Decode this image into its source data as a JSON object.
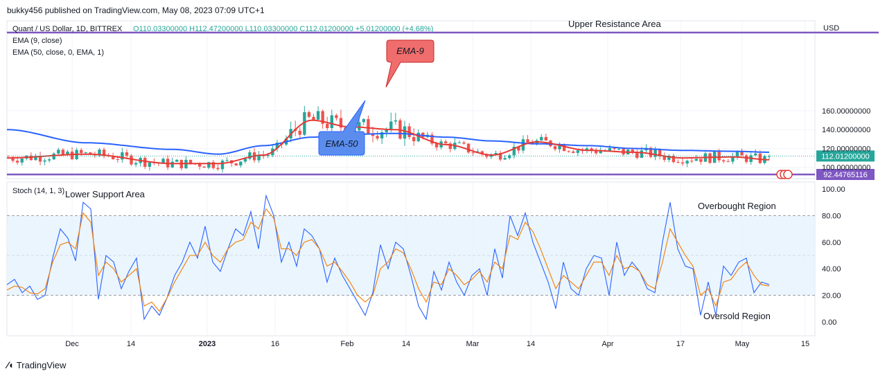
{
  "header": {
    "published": "bukky456 published on TradingView.com, May 08, 2023 07:09 UTC+1"
  },
  "legend": {
    "symbol": "Quant / US Dollar, 1D, BITTREX",
    "ohlc": "O110.03300000  H112.47200000  L110.03300000  C112.01200000  +5.01200000 (+4.68%)",
    "ema9": "EMA (9, close)",
    "ema50": "EMA (50, close, 0, EMA, 1)",
    "stoch": "Stoch (14, 1, 3)"
  },
  "annotations": {
    "upper_resistance": "Upper Resistance Area",
    "lower_support": "Lower Support Area",
    "overbought": "Overbought Region",
    "oversold": "Oversold Region",
    "ema9_callout": "EMA-9",
    "ema50_callout": "EMA-50"
  },
  "footer": {
    "brand": "TradingView"
  },
  "colors": {
    "up": "#26a69a",
    "down": "#ef5350",
    "ema9": "#e53935",
    "ema50": "#2962ff",
    "level": "#7e57c2",
    "k": "#2962ff",
    "d": "#f57c00",
    "band": "#e3f2fd"
  },
  "chart_data": [
    {
      "type": "candlestick",
      "title": "Quant / US Dollar, 1D, BITTREX",
      "currency": "USD",
      "y_ticks": [
        100,
        120,
        140,
        160
      ],
      "y_tick_labels": [
        "100.00000000",
        "120.00000000",
        "140.00000000",
        "160.00000000"
      ],
      "ylim": [
        92.4,
        168
      ],
      "x_ticks": [
        "Dec",
        "14",
        "2023",
        "16",
        "Feb",
        "14",
        "Mar",
        "14",
        "Apr",
        "17",
        "May",
        "15"
      ],
      "last_price": 112.012,
      "last_price_label": "112.01200000",
      "resistance_level": 167,
      "support_level": 92.44765116,
      "support_label": "92.44765116",
      "ema9_anchor_dates": [
        "Nov 20",
        "Dec 8",
        "Dec 27",
        "Jan 8",
        "Jan 18",
        "Jan 28",
        "Feb 7",
        "Feb 18",
        "Mar 1",
        "Mar 11",
        "Mar 21",
        "Apr 2",
        "Apr 12",
        "Apr 22",
        "May 2",
        "May 7"
      ],
      "ema9": [
        110,
        114,
        104,
        104,
        113,
        150,
        143,
        140,
        124,
        113,
        127,
        118,
        116,
        110,
        111,
        108
      ],
      "ema50_anchor_dates": [
        "Nov 20",
        "Dec 8",
        "Dec 27",
        "Jan 8",
        "Jan 18",
        "Jan 28",
        "Feb 7",
        "Feb 18",
        "Mar 1",
        "Mar 11",
        "Mar 21",
        "Apr 2",
        "Apr 12",
        "Apr 22",
        "May 2",
        "May 7"
      ],
      "ema50": [
        140,
        126,
        119,
        114,
        123,
        132,
        135,
        136,
        132,
        128,
        125,
        123,
        120,
        118,
        117,
        116
      ],
      "candle_count": 168
    },
    {
      "type": "line",
      "title": "Stoch (14, 1, 3)",
      "y_ticks": [
        0,
        20,
        40,
        60,
        80,
        100
      ],
      "y_tick_labels": [
        "0.00",
        "20.00",
        "40.00",
        "60.00",
        "80.00",
        "100.00"
      ],
      "ylim": [
        -7,
        103
      ],
      "band": [
        20,
        80
      ],
      "midline": 50,
      "series": [
        {
          "name": "%K",
          "values": [
            28,
            32,
            22,
            27,
            17,
            20,
            48,
            70,
            63,
            46,
            90,
            85,
            17,
            50,
            45,
            25,
            38,
            48,
            2,
            12,
            5,
            18,
            35,
            45,
            60,
            48,
            72,
            45,
            38,
            55,
            70,
            65,
            83,
            55,
            95,
            80,
            45,
            60,
            42,
            70,
            65,
            55,
            30,
            48,
            35,
            25,
            15,
            5,
            22,
            58,
            40,
            60,
            55,
            35,
            12,
            2,
            38,
            24,
            45,
            30,
            20,
            35,
            40,
            20,
            55,
            33,
            80,
            65,
            82,
            60,
            45,
            30,
            10,
            45,
            25,
            20,
            40,
            50,
            48,
            20,
            60,
            35,
            45,
            38,
            25,
            22,
            60,
            90,
            55,
            42,
            40,
            5,
            30,
            5,
            42,
            35,
            45,
            48,
            22,
            30,
            28
          ]
        },
        {
          "name": "%D",
          "values": [
            24,
            27,
            26,
            22,
            21,
            25,
            45,
            58,
            60,
            55,
            82,
            75,
            35,
            45,
            40,
            30,
            35,
            40,
            12,
            15,
            8,
            18,
            30,
            40,
            50,
            50,
            60,
            50,
            45,
            55,
            60,
            62,
            75,
            70,
            85,
            78,
            55,
            55,
            50,
            60,
            62,
            55,
            42,
            45,
            38,
            30,
            20,
            15,
            20,
            40,
            45,
            55,
            52,
            40,
            25,
            15,
            30,
            28,
            40,
            35,
            28,
            32,
            38,
            30,
            45,
            40,
            65,
            62,
            75,
            68,
            55,
            40,
            25,
            35,
            30,
            25,
            35,
            45,
            45,
            35,
            50,
            40,
            42,
            38,
            28,
            25,
            45,
            70,
            60,
            50,
            42,
            20,
            25,
            12,
            30,
            32,
            40,
            45,
            35,
            28,
            27
          ]
        }
      ]
    }
  ]
}
